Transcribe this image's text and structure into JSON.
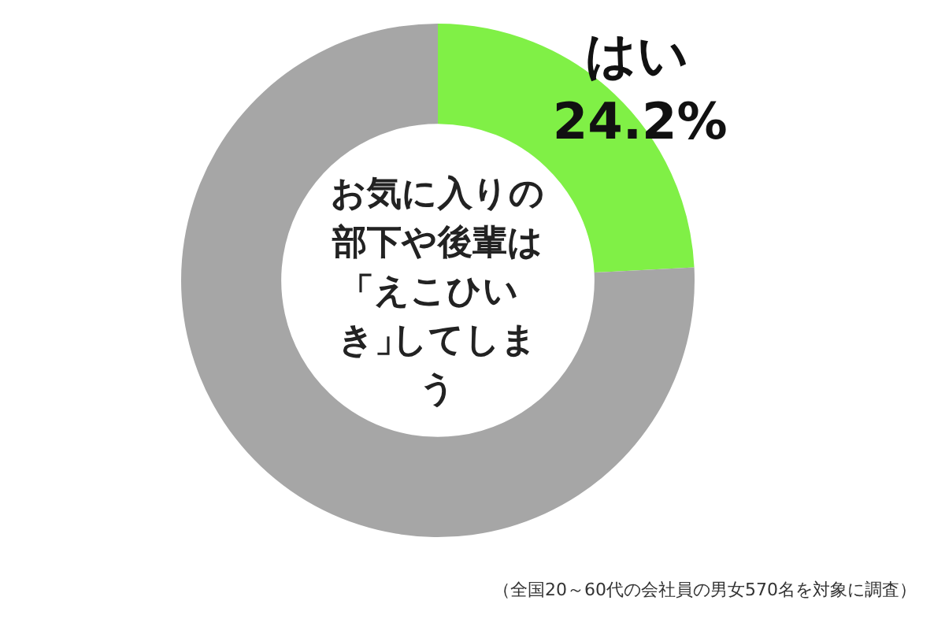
{
  "chart_data": {
    "type": "donut",
    "title": "お気に入りの部下や後輩は「えこひいき」してしまう",
    "categories": [
      "はい",
      null
    ],
    "values": [
      24.2,
      75.8
    ],
    "colors": [
      "#80f046",
      "#a6a6a6"
    ],
    "value_labels": [
      "24.2%",
      null
    ],
    "legend": false,
    "annotations": [
      "（全国20～60代の会社員の男女570名を対象に調査）"
    ]
  }
}
